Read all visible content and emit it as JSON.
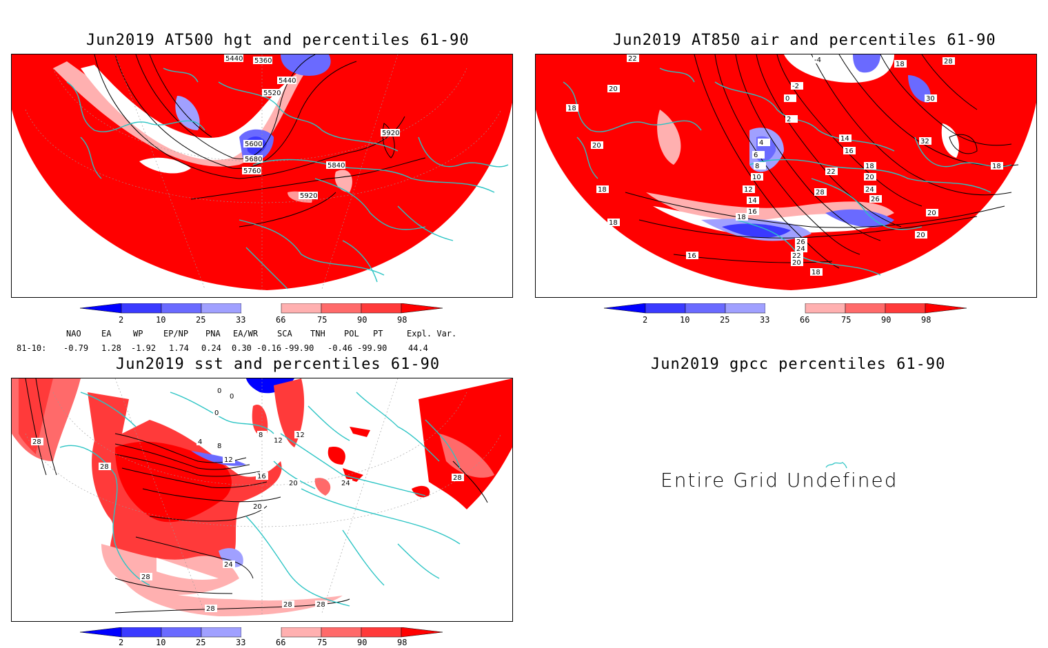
{
  "panels": {
    "hgt": {
      "title": "Jun2019 AT500 hgt and percentiles 61-90",
      "contour_labels": [
        "5360",
        "5440",
        "5440",
        "5520",
        "5600",
        "5680",
        "5760",
        "5840",
        "5920",
        "5920"
      ]
    },
    "air": {
      "title": "Jun2019 AT850 air and percentiles 61-90",
      "contour_labels": [
        "22",
        "20",
        "18",
        "20",
        "18",
        "18",
        "-4",
        "-2",
        "0",
        "2",
        "4",
        "6",
        "8",
        "10",
        "12",
        "14",
        "16",
        "18",
        "14",
        "16",
        "18",
        "20",
        "22",
        "24",
        "26",
        "28",
        "26",
        "24",
        "22",
        "20",
        "18",
        "16",
        "20",
        "20",
        "18",
        "28",
        "30",
        "32",
        "18"
      ]
    },
    "sst": {
      "title": "Jun2019 sst and percentiles 61-90",
      "contour_labels": [
        "0",
        "0",
        "0",
        "4",
        "8",
        "8",
        "12",
        "12",
        "12",
        "16",
        "20",
        "20",
        "24",
        "24",
        "28",
        "28",
        "28",
        "28",
        "28",
        "28",
        "28"
      ]
    },
    "gpcc": {
      "title": "Jun2019 gpcc percentiles 61-90",
      "message": "Entire Grid Undefined"
    }
  },
  "colorbar": {
    "ticks": [
      "2",
      "10",
      "25",
      "33",
      "66",
      "75",
      "90",
      "98"
    ],
    "colors": [
      "#0000ff",
      "#3a3aff",
      "#6a6aff",
      "#a0a0ff",
      "#ffffff",
      "#ffb0b0",
      "#ff6a6a",
      "#ff3a3a",
      "#ff0000"
    ]
  },
  "indices": {
    "headers": [
      "NAO",
      "EA",
      "WP",
      "EP/NP",
      "PNA",
      "EA/WR",
      "SCA",
      "TNH",
      "POL",
      "PT",
      "Expl. Var."
    ],
    "row_label": "81-10:",
    "values": [
      "-0.79",
      "1.28",
      "-1.92",
      "1.74",
      "0.24",
      "0.30",
      "-0.16",
      "-99.90",
      "-0.46",
      "-99.90",
      "44.4"
    ]
  }
}
